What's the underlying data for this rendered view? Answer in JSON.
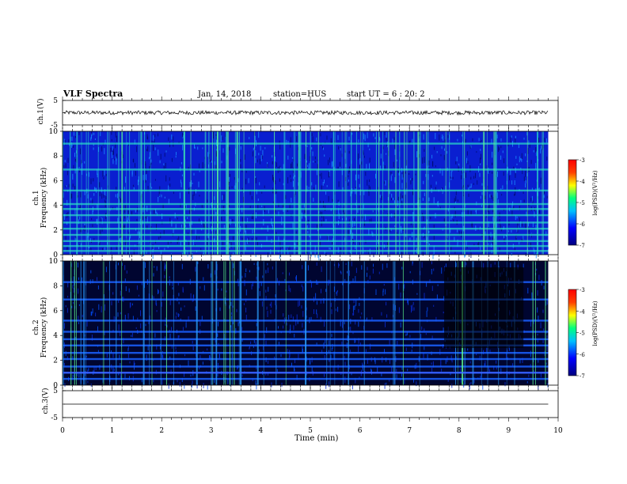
{
  "header": {
    "title": "VLF Spectra",
    "date": "Jan. 14, 2018",
    "station": "station=HUS",
    "start": "start  UT =   6 : 20: 2"
  },
  "panels": {
    "ch1_label": "ch.1(V)",
    "ch3_label": "ch.3(V)",
    "ch1_freq_label": "ch.1\nFrequency (kHz)",
    "ch2_freq_label": "ch.2\nFrequency (kHz)",
    "colorbar_label": "log(PSD)(V²/Hz)"
  },
  "colors": {
    "spec_bg1": "#0a1fd0",
    "spec_bg2": "#000530",
    "band": "#2be0c8",
    "line": "#000000"
  },
  "chart_data": [
    {
      "type": "line",
      "name": "ch1-waveform",
      "ylabel": "ch.1(V)",
      "ylim": [
        -5,
        5
      ],
      "xlim": [
        0,
        10
      ],
      "yticks": [
        "5",
        "-5"
      ],
      "approx_level": 0
    },
    {
      "type": "heatmap",
      "name": "ch1-spectrogram",
      "ylabel": "Frequency (kHz)",
      "ylim": [
        0,
        10
      ],
      "xlim": [
        0,
        10
      ],
      "yticks": [
        "0",
        "2",
        "4",
        "6",
        "8",
        "10"
      ],
      "data_end_min": 9.8,
      "bands_khz": [
        0.3,
        0.7,
        1.1,
        1.6,
        2.1,
        2.6,
        3.2,
        3.7,
        4.1,
        5.2,
        6.9,
        9.0
      ],
      "colorbar": {
        "label": "log(PSD)(V²/Hz)",
        "ticks": [
          "-3",
          "-4",
          "-5",
          "-6",
          "-7"
        ],
        "range": [
          -7,
          -3
        ]
      }
    },
    {
      "type": "heatmap",
      "name": "ch2-spectrogram",
      "ylabel": "Frequency (kHz)",
      "ylim": [
        0,
        10
      ],
      "xlim": [
        0,
        10
      ],
      "yticks": [
        "0",
        "2",
        "4",
        "6",
        "8",
        "10"
      ],
      "data_end_min": 9.8,
      "bands_khz": [
        0.5,
        1.0,
        1.5,
        2.1,
        2.6,
        3.2,
        3.7,
        4.3,
        5.2,
        6.9,
        8.3
      ],
      "colorbar": {
        "label": "log(PSD)(V²/Hz)",
        "ticks": [
          "-3",
          "-4",
          "-5",
          "-6",
          "-7"
        ],
        "range": [
          -7,
          -3
        ]
      }
    },
    {
      "type": "line",
      "name": "ch3-waveform",
      "ylabel": "ch.3(V)",
      "ylim": [
        -5,
        5
      ],
      "xlim": [
        0,
        10
      ],
      "yticks": [
        "5",
        "-5"
      ],
      "approx_level": 0
    }
  ],
  "xaxis": {
    "label": "Time  (min)",
    "ticks": [
      "0",
      "1",
      "2",
      "3",
      "4",
      "5",
      "6",
      "7",
      "8",
      "9",
      "10"
    ]
  }
}
